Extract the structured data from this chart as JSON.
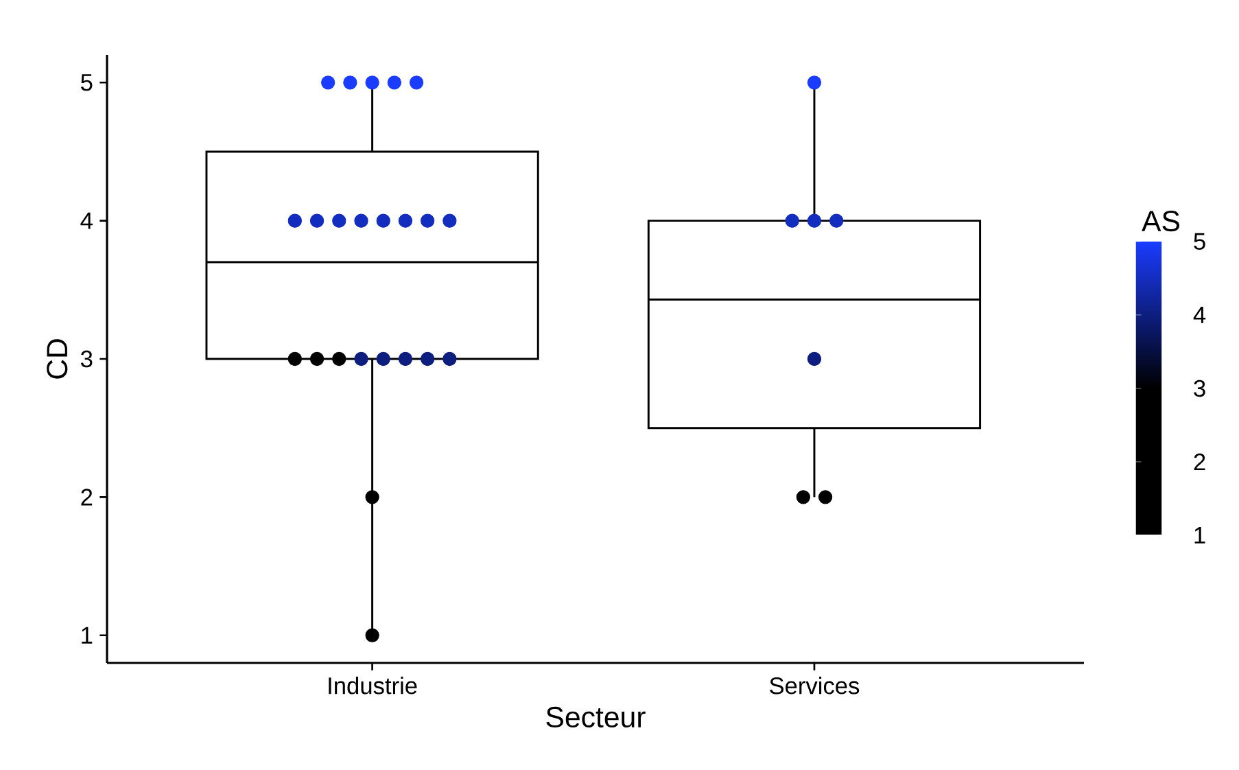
{
  "chart_data": {
    "type": "box",
    "xlabel": "Secteur",
    "ylabel": "CD",
    "clabel": "AS",
    "categories": [
      "Industrie",
      "Services"
    ],
    "boxes": [
      {
        "low": 1,
        "q1": 3,
        "median": 3.7,
        "q3": 4.5,
        "high": 5
      },
      {
        "low": 2,
        "q1": 2.5,
        "median": 3.43,
        "q3": 4,
        "high": 5
      }
    ],
    "series": [
      {
        "type": "scatter",
        "x": [
          "Industrie",
          "Industrie",
          "Industrie",
          "Industrie",
          "Industrie",
          "Industrie",
          "Industrie",
          "Industrie",
          "Industrie",
          "Industrie",
          "Industrie",
          "Industrie",
          "Industrie",
          "Industrie",
          "Industrie",
          "Industrie",
          "Industrie",
          "Industrie",
          "Industrie",
          "Industrie",
          "Industrie",
          "Industrie",
          "Industrie",
          "Services",
          "Services",
          "Services",
          "Services",
          "Services",
          "Services",
          "Services"
        ],
        "values": [
          5,
          5,
          5,
          5,
          5,
          4,
          4,
          4,
          4,
          4,
          4,
          4,
          4,
          3,
          3,
          3,
          3,
          3,
          3,
          3,
          3,
          2,
          1,
          5,
          4,
          4,
          4,
          3,
          2,
          2
        ],
        "cvalues": [
          5,
          5,
          5,
          5,
          5,
          4.5,
          4.5,
          4.5,
          4.5,
          4.5,
          4.5,
          4.5,
          4.5,
          null,
          null,
          null,
          4,
          4,
          4,
          4,
          4,
          null,
          null,
          5,
          4.5,
          4.5,
          4.5,
          4,
          null,
          null
        ],
        "colors": [
          "#1a3cff",
          "#1a3cff",
          "#1a3cff",
          "#1a3cff",
          "#1a3cff",
          "#142dbf",
          "#142dbf",
          "#142dbf",
          "#142dbf",
          "#142dbf",
          "#142dbf",
          "#142dbf",
          "#142dbf",
          "#000000",
          "#000000",
          "#000000",
          "#0d1e80",
          "#0d1e80",
          "#0d1e80",
          "#0d1e80",
          "#0d1e80",
          "#000000",
          "#000000",
          "#1a3cff",
          "#142dbf",
          "#142dbf",
          "#142dbf",
          "#0d1e80",
          "#000000",
          "#000000"
        ]
      }
    ],
    "ylim": [
      0.8,
      5.2
    ],
    "yticks": [
      1,
      2,
      3,
      4,
      5
    ],
    "clim": [
      1,
      5
    ],
    "cticks": [
      1,
      2,
      3,
      4,
      5
    ],
    "marker": "circle",
    "grid": false
  }
}
